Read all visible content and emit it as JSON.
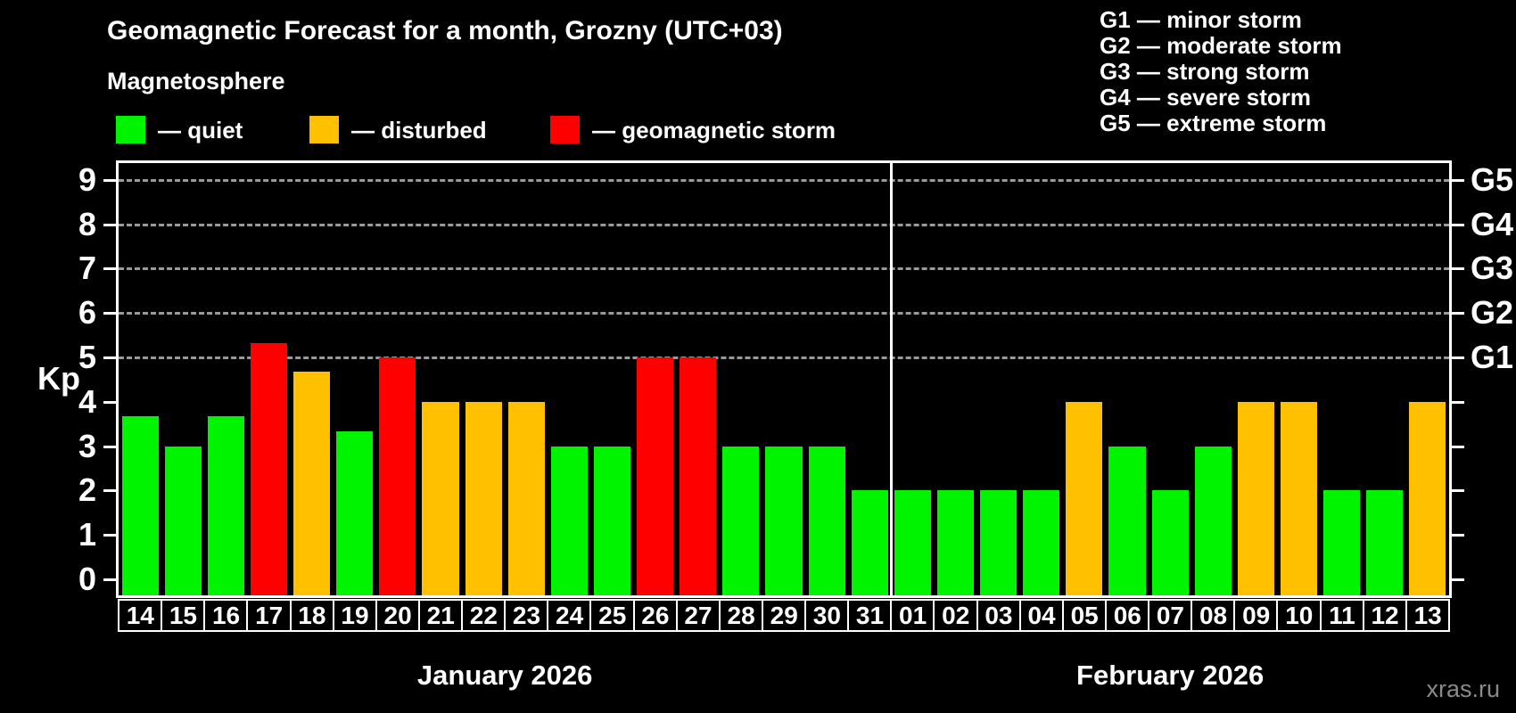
{
  "header": {
    "title": "Geomagnetic Forecast for a month, Grozny (UTC+03)",
    "subtitle": "Magnetosphere"
  },
  "legend": {
    "items": [
      {
        "name": "quiet",
        "label": "— quiet",
        "color": "#00f400",
        "x": 130
      },
      {
        "name": "disturbed",
        "label": "— disturbed",
        "color": "#ffc000",
        "x": 347
      },
      {
        "name": "storm",
        "label": "— geomagnetic storm",
        "color": "#ff0000",
        "x": 617
      }
    ]
  },
  "g_legend": {
    "items": [
      "G1 — minor storm",
      "G2 — moderate storm",
      "G3 — strong storm",
      "G4 — severe storm",
      "G5 — extreme storm"
    ]
  },
  "watermark": "xras.ru",
  "chart_data": {
    "type": "bar",
    "title": "Geomagnetic Forecast for a month, Grozny (UTC+03)",
    "ylabel": "Kp",
    "ylim": [
      0,
      9
    ],
    "y_ticks": [
      0,
      1,
      2,
      3,
      4,
      5,
      6,
      7,
      8,
      9
    ],
    "grid": "horizontal dashed lines at Kp 5,6,7,8,9",
    "legend_position": "top",
    "right_axis_labels": [
      {
        "label": "G1",
        "kp": 5
      },
      {
        "label": "G2",
        "kp": 6
      },
      {
        "label": "G3",
        "kp": 7
      },
      {
        "label": "G4",
        "kp": 8
      },
      {
        "label": "G5",
        "kp": 9
      }
    ],
    "level_colors": {
      "quiet": "#00f400",
      "disturbed": "#ffc000",
      "storm": "#ff0000"
    },
    "level_rules": "quiet: Kp < 4, disturbed: 4 <= Kp < 5, storm: Kp >= 5",
    "months": [
      {
        "label": "January 2026",
        "days": [
          {
            "date": "14",
            "kp": 3.67,
            "level": "quiet"
          },
          {
            "date": "15",
            "kp": 3.0,
            "level": "quiet"
          },
          {
            "date": "16",
            "kp": 3.67,
            "level": "quiet"
          },
          {
            "date": "17",
            "kp": 5.33,
            "level": "storm"
          },
          {
            "date": "18",
            "kp": 4.67,
            "level": "disturbed"
          },
          {
            "date": "19",
            "kp": 3.33,
            "level": "quiet"
          },
          {
            "date": "20",
            "kp": 5.0,
            "level": "storm"
          },
          {
            "date": "21",
            "kp": 4.0,
            "level": "disturbed"
          },
          {
            "date": "22",
            "kp": 4.0,
            "level": "disturbed"
          },
          {
            "date": "23",
            "kp": 4.0,
            "level": "disturbed"
          },
          {
            "date": "24",
            "kp": 3.0,
            "level": "quiet"
          },
          {
            "date": "25",
            "kp": 3.0,
            "level": "quiet"
          },
          {
            "date": "26",
            "kp": 5.0,
            "level": "storm"
          },
          {
            "date": "27",
            "kp": 5.0,
            "level": "storm"
          },
          {
            "date": "28",
            "kp": 3.0,
            "level": "quiet"
          },
          {
            "date": "29",
            "kp": 3.0,
            "level": "quiet"
          },
          {
            "date": "30",
            "kp": 3.0,
            "level": "quiet"
          },
          {
            "date": "31",
            "kp": 2.0,
            "level": "quiet"
          }
        ]
      },
      {
        "label": "February 2026",
        "days": [
          {
            "date": "01",
            "kp": 2.0,
            "level": "quiet"
          },
          {
            "date": "02",
            "kp": 2.0,
            "level": "quiet"
          },
          {
            "date": "03",
            "kp": 2.0,
            "level": "quiet"
          },
          {
            "date": "04",
            "kp": 2.0,
            "level": "quiet"
          },
          {
            "date": "05",
            "kp": 4.0,
            "level": "disturbed"
          },
          {
            "date": "06",
            "kp": 3.0,
            "level": "quiet"
          },
          {
            "date": "07",
            "kp": 2.0,
            "level": "quiet"
          },
          {
            "date": "08",
            "kp": 3.0,
            "level": "quiet"
          },
          {
            "date": "09",
            "kp": 4.0,
            "level": "disturbed"
          },
          {
            "date": "10",
            "kp": 4.0,
            "level": "disturbed"
          },
          {
            "date": "11",
            "kp": 2.0,
            "level": "quiet"
          },
          {
            "date": "12",
            "kp": 2.0,
            "level": "quiet"
          },
          {
            "date": "13",
            "kp": 4.0,
            "level": "disturbed"
          }
        ]
      }
    ]
  }
}
